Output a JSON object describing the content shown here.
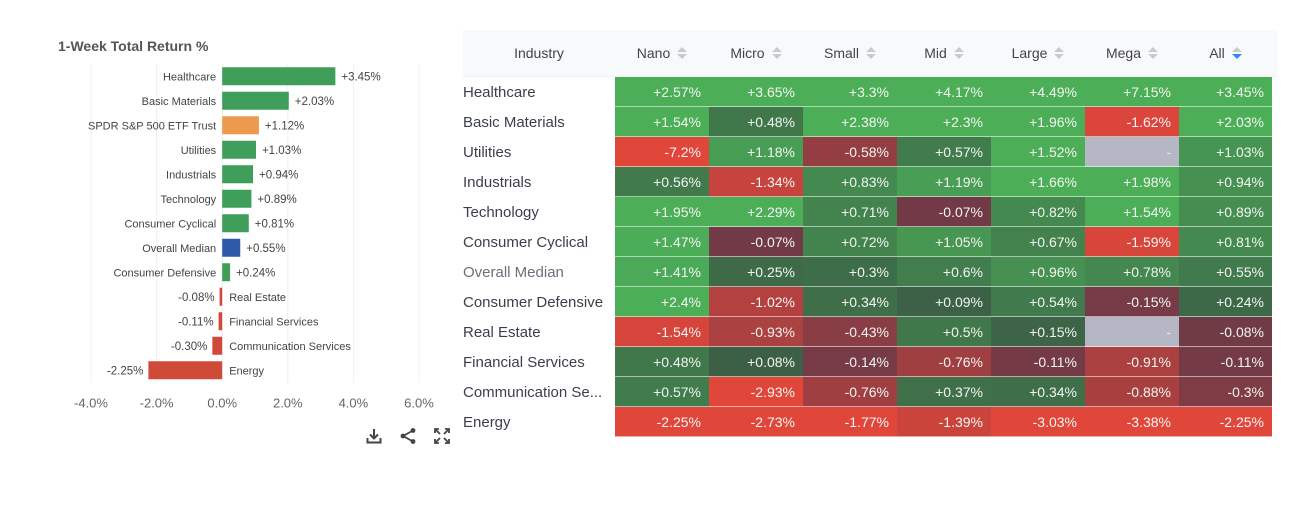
{
  "chart_data": {
    "type": "bar",
    "orientation": "horizontal",
    "title": "1-Week Total Return %",
    "categories": [
      "Healthcare",
      "Basic Materials",
      "SPDR S&P 500 ETF Trust",
      "Utilities",
      "Industrials",
      "Technology",
      "Consumer Cyclical",
      "Overall Median",
      "Consumer Defensive",
      "Real Estate",
      "Financial Services",
      "Communication Services",
      "Energy"
    ],
    "values": [
      3.45,
      2.03,
      1.12,
      1.03,
      0.94,
      0.89,
      0.81,
      0.55,
      0.24,
      -0.08,
      -0.11,
      -0.3,
      -2.25
    ],
    "labels": [
      "+3.45%",
      "+2.03%",
      "+1.12%",
      "+1.03%",
      "+0.94%",
      "+0.89%",
      "+0.81%",
      "+0.55%",
      "+0.24%",
      "-0.08%",
      "-0.11%",
      "-0.30%",
      "-2.25%"
    ],
    "bar_kinds": [
      "pos",
      "pos",
      "benchmark",
      "pos",
      "pos",
      "pos",
      "pos",
      "median",
      "pos",
      "neg",
      "neg",
      "neg",
      "neg"
    ],
    "xlim": [
      -4,
      6
    ],
    "xticks": [
      -4,
      -2,
      0,
      2,
      4,
      6
    ],
    "xtick_labels": [
      "-4.0%",
      "-2.0%",
      "0.0%",
      "2.0%",
      "4.0%",
      "6.0%"
    ],
    "grid": true,
    "colors": {
      "pos": "#3f9e5a",
      "neg": "#d04a3a",
      "benchmark": "#eb9a4e",
      "median": "#2e5ba8"
    }
  },
  "toolbar": {
    "icons": [
      "download-icon",
      "share-icon",
      "fullscreen-icon"
    ]
  },
  "table": {
    "headers": [
      "Industry",
      "Nano",
      "Micro",
      "Small",
      "Mid",
      "Large",
      "Mega",
      "All"
    ],
    "sorted_column": "All",
    "sort_direction": "descending",
    "rows": [
      {
        "industry": "Healthcare",
        "values": [
          "+2.57%",
          "+3.65%",
          "+3.3%",
          "+4.17%",
          "+4.49%",
          "+7.15%",
          "+3.45%"
        ],
        "nums": [
          2.57,
          3.65,
          3.3,
          4.17,
          4.49,
          7.15,
          3.45
        ]
      },
      {
        "industry": "Basic Materials",
        "values": [
          "+1.54%",
          "+0.48%",
          "+2.38%",
          "+2.3%",
          "+1.96%",
          "-1.62%",
          "+2.03%"
        ],
        "nums": [
          1.54,
          0.48,
          2.38,
          2.3,
          1.96,
          -1.62,
          2.03
        ]
      },
      {
        "industry": "Utilities",
        "values": [
          "-7.2%",
          "+1.18%",
          "-0.58%",
          "+0.57%",
          "+1.52%",
          "-",
          "+1.03%"
        ],
        "nums": [
          -7.2,
          1.18,
          -0.58,
          0.57,
          1.52,
          null,
          1.03
        ]
      },
      {
        "industry": "Industrials",
        "values": [
          "+0.56%",
          "-1.34%",
          "+0.83%",
          "+1.19%",
          "+1.66%",
          "+1.98%",
          "+0.94%"
        ],
        "nums": [
          0.56,
          -1.34,
          0.83,
          1.19,
          1.66,
          1.98,
          0.94
        ]
      },
      {
        "industry": "Technology",
        "values": [
          "+1.95%",
          "+2.29%",
          "+0.71%",
          "-0.07%",
          "+0.82%",
          "+1.54%",
          "+0.89%"
        ],
        "nums": [
          1.95,
          2.29,
          0.71,
          -0.07,
          0.82,
          1.54,
          0.89
        ]
      },
      {
        "industry": "Consumer Cyclical",
        "values": [
          "+1.47%",
          "-0.07%",
          "+0.72%",
          "+1.05%",
          "+0.67%",
          "-1.59%",
          "+0.81%"
        ],
        "nums": [
          1.47,
          -0.07,
          0.72,
          1.05,
          0.67,
          -1.59,
          0.81
        ]
      },
      {
        "industry": "Overall Median",
        "muted": true,
        "values": [
          "+1.41%",
          "+0.25%",
          "+0.3%",
          "+0.6%",
          "+0.96%",
          "+0.78%",
          "+0.55%"
        ],
        "nums": [
          1.41,
          0.25,
          0.3,
          0.6,
          0.96,
          0.78,
          0.55
        ]
      },
      {
        "industry": "Consumer Defensive",
        "values": [
          "+2.4%",
          "-1.02%",
          "+0.34%",
          "+0.09%",
          "+0.54%",
          "-0.15%",
          "+0.24%"
        ],
        "nums": [
          2.4,
          -1.02,
          0.34,
          0.09,
          0.54,
          -0.15,
          0.24
        ]
      },
      {
        "industry": "Real Estate",
        "values": [
          "-1.54%",
          "-0.93%",
          "-0.43%",
          "+0.5%",
          "+0.15%",
          "-",
          "-0.08%"
        ],
        "nums": [
          -1.54,
          -0.93,
          -0.43,
          0.5,
          0.15,
          null,
          -0.08
        ]
      },
      {
        "industry": "Financial Services",
        "values": [
          "+0.48%",
          "+0.08%",
          "-0.14%",
          "-0.76%",
          "-0.11%",
          "-0.91%",
          "-0.11%"
        ],
        "nums": [
          0.48,
          0.08,
          -0.14,
          -0.76,
          -0.11,
          -0.91,
          -0.11
        ]
      },
      {
        "industry": "Communication Se...",
        "values": [
          "+0.57%",
          "-2.93%",
          "-0.76%",
          "+0.37%",
          "+0.34%",
          "-0.88%",
          "-0.3%"
        ],
        "nums": [
          0.57,
          -2.93,
          -0.76,
          0.37,
          0.34,
          -0.88,
          -0.3
        ]
      },
      {
        "industry": "Energy",
        "values": [
          "-2.25%",
          "-2.73%",
          "-1.77%",
          "-1.39%",
          "-3.03%",
          "-3.38%",
          "-2.25%"
        ],
        "nums": [
          -2.25,
          -2.73,
          -1.77,
          -1.39,
          -3.03,
          -3.38,
          -2.25
        ]
      }
    ],
    "colors": {
      "pos_strong": "#4caf58",
      "pos_weak": "#3b5c45",
      "neg_strong": "#e0463a",
      "neg_weak": "#6c3a47",
      "empty": "#b5b8c4"
    }
  }
}
